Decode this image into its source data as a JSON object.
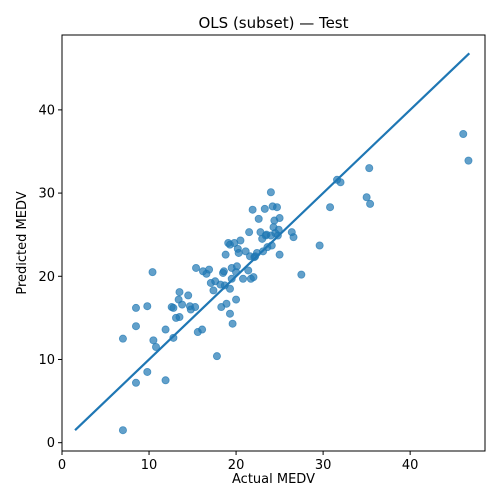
{
  "chart_data": {
    "type": "scatter",
    "title": "OLS (subset) — Test",
    "xlabel": "Actual MEDV",
    "ylabel": "Predicted MEDV",
    "xlim": [
      0,
      48.6
    ],
    "ylim": [
      -1.0,
      49.0
    ],
    "xticks": [
      0,
      10,
      20,
      30,
      40
    ],
    "yticks": [
      0,
      10,
      20,
      30,
      40
    ],
    "grid": false,
    "colors": {
      "points": "#1f77b4",
      "line": "#1f77b4"
    },
    "fit_line": {
      "x": [
        1.5,
        46.8
      ],
      "y": [
        1.5,
        46.8
      ]
    },
    "points": [
      [
        7.0,
        1.5
      ],
      [
        8.5,
        7.2
      ],
      [
        7.0,
        12.5
      ],
      [
        8.5,
        14.0
      ],
      [
        8.5,
        16.2
      ],
      [
        9.8,
        16.4
      ],
      [
        9.8,
        8.5
      ],
      [
        10.4,
        20.5
      ],
      [
        10.5,
        12.3
      ],
      [
        10.8,
        11.5
      ],
      [
        11.9,
        7.5
      ],
      [
        11.9,
        13.6
      ],
      [
        12.6,
        16.3
      ],
      [
        12.8,
        16.2
      ],
      [
        12.8,
        12.6
      ],
      [
        13.1,
        15.0
      ],
      [
        13.5,
        15.1
      ],
      [
        13.5,
        18.1
      ],
      [
        13.4,
        17.2
      ],
      [
        13.8,
        16.6
      ],
      [
        14.5,
        17.7
      ],
      [
        14.7,
        16.4
      ],
      [
        14.8,
        16.0
      ],
      [
        15.3,
        16.3
      ],
      [
        15.4,
        21.0
      ],
      [
        15.6,
        13.3
      ],
      [
        16.1,
        13.6
      ],
      [
        16.2,
        20.6
      ],
      [
        16.6,
        20.3
      ],
      [
        16.9,
        20.8
      ],
      [
        17.1,
        19.2
      ],
      [
        17.4,
        18.3
      ],
      [
        17.6,
        19.4
      ],
      [
        17.8,
        10.4
      ],
      [
        18.2,
        19.0
      ],
      [
        18.3,
        16.3
      ],
      [
        18.5,
        20.4
      ],
      [
        18.6,
        20.6
      ],
      [
        18.7,
        18.9
      ],
      [
        18.8,
        22.6
      ],
      [
        18.9,
        16.7
      ],
      [
        19.1,
        24.0
      ],
      [
        19.3,
        23.8
      ],
      [
        19.3,
        18.5
      ],
      [
        19.3,
        15.5
      ],
      [
        19.5,
        21.0
      ],
      [
        19.5,
        19.7
      ],
      [
        19.6,
        14.3
      ],
      [
        19.8,
        24.0
      ],
      [
        20.0,
        17.2
      ],
      [
        20.0,
        20.5
      ],
      [
        20.1,
        21.2
      ],
      [
        20.2,
        23.3
      ],
      [
        20.3,
        22.8
      ],
      [
        20.5,
        24.3
      ],
      [
        20.8,
        19.7
      ],
      [
        21.1,
        23.0
      ],
      [
        21.4,
        20.7
      ],
      [
        21.5,
        25.3
      ],
      [
        21.6,
        22.4
      ],
      [
        21.7,
        19.7
      ],
      [
        21.9,
        28.0
      ],
      [
        22.0,
        19.9
      ],
      [
        22.1,
        22.3
      ],
      [
        22.2,
        22.4
      ],
      [
        22.4,
        22.8
      ],
      [
        22.6,
        26.9
      ],
      [
        22.8,
        25.3
      ],
      [
        23.0,
        24.5
      ],
      [
        23.1,
        23.0
      ],
      [
        23.3,
        28.1
      ],
      [
        23.4,
        24.9
      ],
      [
        23.5,
        25.0
      ],
      [
        23.6,
        23.5
      ],
      [
        24.0,
        30.1
      ],
      [
        24.0,
        24.9
      ],
      [
        24.1,
        23.7
      ],
      [
        24.2,
        28.4
      ],
      [
        24.3,
        25.9
      ],
      [
        24.4,
        26.7
      ],
      [
        24.5,
        25.2
      ],
      [
        24.7,
        28.3
      ],
      [
        24.8,
        24.9
      ],
      [
        24.9,
        25.6
      ],
      [
        25.0,
        27.0
      ],
      [
        25.0,
        22.6
      ],
      [
        26.4,
        25.3
      ],
      [
        26.6,
        24.7
      ],
      [
        27.5,
        20.2
      ],
      [
        29.6,
        23.7
      ],
      [
        30.8,
        28.3
      ],
      [
        31.6,
        31.6
      ],
      [
        32.0,
        31.3
      ],
      [
        35.0,
        29.5
      ],
      [
        35.3,
        33.0
      ],
      [
        35.4,
        28.7
      ],
      [
        46.1,
        37.1
      ],
      [
        46.7,
        33.9
      ]
    ]
  }
}
